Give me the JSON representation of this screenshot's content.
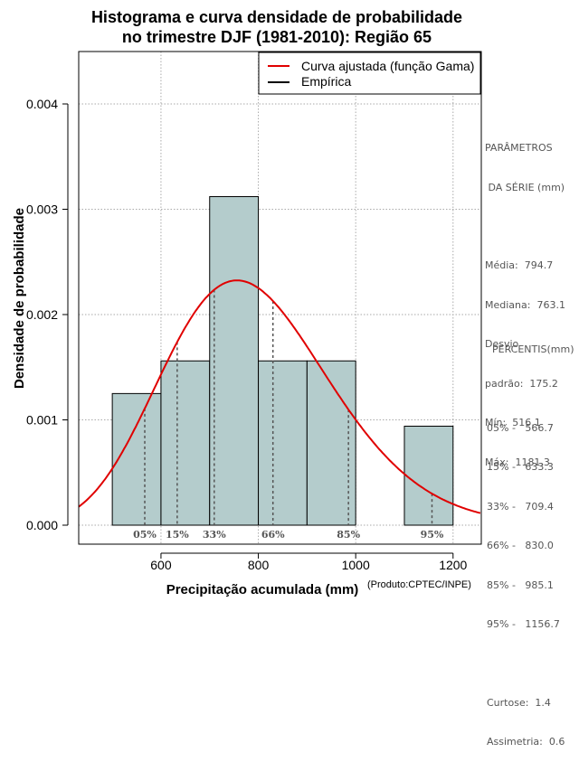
{
  "chart_data": {
    "type": "histogram",
    "title_line1": "Histograma e curva densidade de probabilidade",
    "title_line2": "no trimestre DJF (1981-2010): Região 65",
    "xlabel": "Precipitação acumulada (mm)",
    "ylabel": "Densidade de probabilidade",
    "credit": "(Produto:CPTEC/INPE)",
    "xlim": [
      431,
      1258
    ],
    "ylim": [
      0,
      0.0045
    ],
    "x_ticks": [
      600,
      800,
      1000,
      1200
    ],
    "y_ticks": [
      0.0,
      0.001,
      0.002,
      0.003,
      0.004
    ],
    "y_tick_labels": [
      "0.000",
      "0.001",
      "0.002",
      "0.003",
      "0.004"
    ],
    "grid": true,
    "bins": [
      {
        "start": 500,
        "end": 600,
        "density": 0.00125
      },
      {
        "start": 600,
        "end": 700,
        "density": 0.00156
      },
      {
        "start": 700,
        "end": 800,
        "density": 0.00312
      },
      {
        "start": 800,
        "end": 900,
        "density": 0.00156
      },
      {
        "start": 900,
        "end": 1000,
        "density": 0.00156
      },
      {
        "start": 1100,
        "end": 1200,
        "density": 0.00094
      }
    ],
    "gamma_fit": {
      "mean": 794.7,
      "sd": 175.2
    },
    "percentile_markers": [
      {
        "label": "05%",
        "value": 566.7
      },
      {
        "label": "15%",
        "value": 633.3
      },
      {
        "label": "33%",
        "value": 709.4
      },
      {
        "label": "66%",
        "value": 830.0
      },
      {
        "label": "85%",
        "value": 985.1
      },
      {
        "label": "95%",
        "value": 1156.7
      }
    ],
    "legend": {
      "position": "top-right",
      "entries": [
        {
          "label": "Curva ajustada (função Gama)",
          "color": "#e00000"
        },
        {
          "label": "Empírica",
          "color": "#000000"
        }
      ]
    },
    "colors": {
      "bar_fill": "#b4cccc",
      "curve": "#e00000",
      "grid": "#aaaaaa",
      "percentile_line": "#555555"
    }
  },
  "side_panel": {
    "params_title_1": "PARÂMETROS",
    "params_title_2": " DA SÉRIE (mm)",
    "stats": [
      "Média:  794.7",
      "Mediana:  763.1",
      "Desvio",
      "padrão:  175.2",
      "Mín:  516.1",
      "Máx:  1181.3"
    ],
    "percentis_title": "PERCENTIS(mm)",
    "percentis": [
      "05% -   566.7",
      "15% -   633.3",
      "33% -   709.4",
      "66% -   830.0",
      "85% -   985.1",
      "95% -   1156.7"
    ],
    "curtose": "Curtose:  1.4",
    "assimetria": "Assimetria:  0.6"
  }
}
